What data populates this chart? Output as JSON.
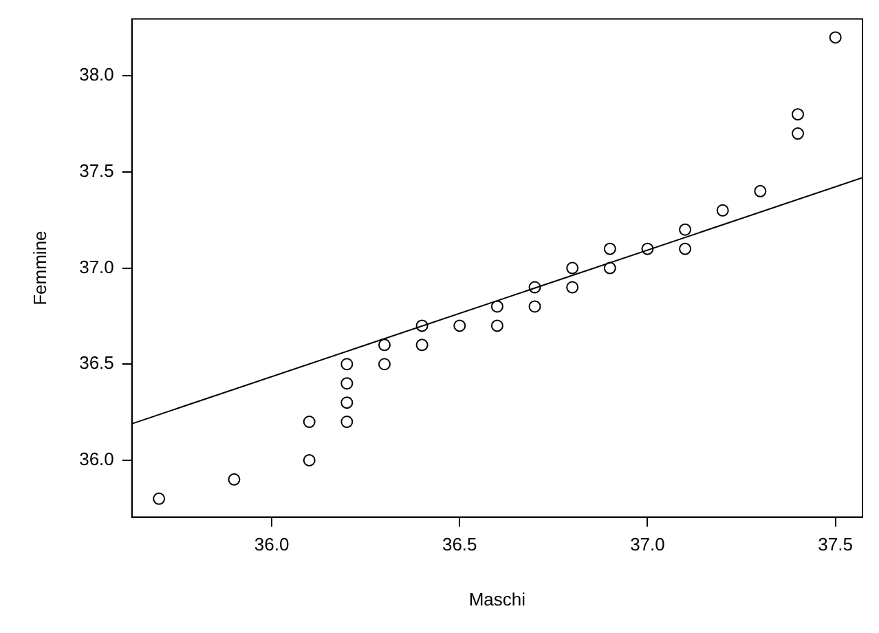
{
  "chart_data": {
    "type": "scatter",
    "xlabel": "Maschi",
    "ylabel": "Femmine",
    "xlim": [
      35.628,
      37.572
    ],
    "ylim": [
      35.704,
      38.296
    ],
    "xticks": [
      {
        "value": 36,
        "label": "36.0"
      },
      {
        "value": 36.5,
        "label": "36.5"
      },
      {
        "value": 37,
        "label": "37.0"
      },
      {
        "value": 37.5,
        "label": "37.5"
      }
    ],
    "yticks": [
      {
        "value": 36,
        "label": "36.0"
      },
      {
        "value": 36.5,
        "label": "36.5"
      },
      {
        "value": 37,
        "label": "37.0"
      },
      {
        "value": 37.5,
        "label": "37.5"
      },
      {
        "value": 38,
        "label": "38.0"
      }
    ],
    "grid": false,
    "legend": false,
    "marker": "circle",
    "series": [
      {
        "type": "scatter",
        "color": "#000000",
        "x": [
          35.7,
          35.9,
          36.1,
          36.1,
          36.2,
          36.2,
          36.2,
          36.2,
          36.3,
          36.3,
          36.4,
          36.4,
          36.5,
          36.6,
          36.6,
          36.7,
          36.7,
          36.8,
          36.8,
          36.9,
          36.9,
          37.0,
          37.1,
          37.1,
          37.2,
          37.3,
          37.4,
          37.4,
          37.5
        ],
        "values": [
          35.8,
          35.9,
          36.0,
          36.2,
          36.2,
          36.3,
          36.4,
          36.5,
          36.5,
          36.6,
          36.6,
          36.7,
          36.7,
          36.7,
          36.8,
          36.8,
          36.9,
          36.9,
          37.0,
          37.0,
          37.1,
          37.1,
          37.1,
          37.2,
          37.3,
          37.4,
          37.7,
          37.8,
          38.2
        ]
      },
      {
        "type": "line",
        "color": "#000000",
        "line_style": "solid",
        "marker": "none",
        "x": [
          35.628,
          37.572
        ],
        "values": [
          36.19,
          37.47
        ]
      }
    ]
  }
}
